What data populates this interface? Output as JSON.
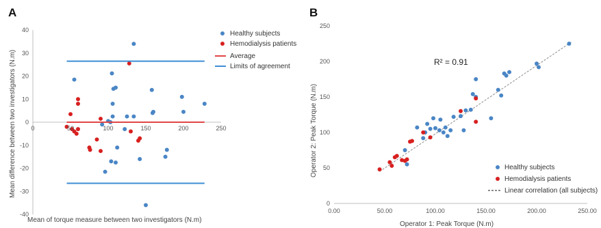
{
  "chart_data": [
    {
      "panel_label": "A",
      "type": "scatter",
      "subtype": "bland-altman",
      "xlabel": "Mean of torque measure between two investigators (N.m)",
      "ylabel": "Mean difference between two investigators (N.m)",
      "xlim": [
        0,
        250
      ],
      "ylim": [
        -40,
        40
      ],
      "xticks": [
        "0",
        "50",
        "100",
        "150",
        "200",
        "250"
      ],
      "yticks": [
        "40",
        "30",
        "20",
        "10",
        "0",
        "-10",
        "-20",
        "-30",
        "-40"
      ],
      "grid": false,
      "legend_position": "top-right",
      "series": [
        {
          "name": "Healthy subjects",
          "color": "#4a86c5",
          "points": [
            [
              55,
              18.5
            ],
            [
              92,
              -1
            ],
            [
              96,
              -21.5
            ],
            [
              100,
              0.5
            ],
            [
              103,
              0
            ],
            [
              104,
              -17
            ],
            [
              105,
              21.2
            ],
            [
              106,
              8
            ],
            [
              106,
              2.5
            ],
            [
              107,
              14.5
            ],
            [
              110,
              -17.5
            ],
            [
              110,
              15
            ],
            [
              112,
              -11
            ],
            [
              122,
              -3
            ],
            [
              125,
              2.5
            ],
            [
              134,
              34
            ],
            [
              134,
              2.5
            ],
            [
              142,
              -16
            ],
            [
              150,
              -36
            ],
            [
              158,
              14
            ],
            [
              159,
              4
            ],
            [
              160,
              4.5
            ],
            [
              176,
              -15
            ],
            [
              178,
              -12
            ],
            [
              198,
              11
            ],
            [
              200,
              4.5
            ],
            [
              228,
              8
            ]
          ]
        },
        {
          "name": "Hemodialysis patients",
          "color": "#d82020",
          "points": [
            [
              45,
              -2
            ],
            [
              50,
              3.5
            ],
            [
              52,
              -3
            ],
            [
              55,
              -4
            ],
            [
              58,
              -5
            ],
            [
              60,
              10
            ],
            [
              60,
              8
            ],
            [
              60,
              -3
            ],
            [
              75,
              -11
            ],
            [
              76,
              -12
            ],
            [
              85,
              -7.5
            ],
            [
              90,
              1.5
            ],
            [
              90,
              -12.5
            ],
            [
              128,
              25.5
            ],
            [
              130,
              -4
            ],
            [
              140,
              -8
            ],
            [
              142,
              -7
            ]
          ]
        }
      ],
      "reference_lines": [
        {
          "name": "Average",
          "y": 0,
          "color": "#e04545"
        },
        {
          "name": "Limits of agreement",
          "y": 26.5,
          "color": "#3d8ed6"
        },
        {
          "name": "Limits of agreement",
          "y": -26.5,
          "color": "#3d8ed6"
        }
      ]
    },
    {
      "panel_label": "B",
      "type": "scatter",
      "subtype": "correlation",
      "xlabel": "Operator 1: Peak Torque (N.m)",
      "ylabel": "Operator 2: Peak Torque (N.m)",
      "xlim": [
        0,
        250
      ],
      "ylim": [
        0,
        250
      ],
      "xticks": [
        "0.00",
        "50.00",
        "100.00",
        "150.00",
        "200.00",
        "250.00"
      ],
      "yticks": [
        "250",
        "200",
        "150",
        "100",
        "50",
        "0"
      ],
      "grid": false,
      "legend_position": "bottom-right",
      "annotation": "R² = 0.91",
      "series": [
        {
          "name": "Healthy subjects",
          "color": "#4a86c5",
          "points": [
            [
              70,
              75
            ],
            [
              72,
              55
            ],
            [
              82,
              107
            ],
            [
              88,
              92
            ],
            [
              90,
              100
            ],
            [
              92,
              112
            ],
            [
              95,
              105
            ],
            [
              98,
              120
            ],
            [
              100,
              106
            ],
            [
              104,
              103
            ],
            [
              105,
              118
            ],
            [
              108,
              100
            ],
            [
              110,
              107
            ],
            [
              112,
              95
            ],
            [
              115,
              103
            ],
            [
              118,
              122
            ],
            [
              125,
              123
            ],
            [
              128,
              103
            ],
            [
              130,
              131
            ],
            [
              135,
              132
            ],
            [
              137,
              154
            ],
            [
              140,
              150
            ],
            [
              140,
              175
            ],
            [
              155,
              120
            ],
            [
              162,
              160
            ],
            [
              165,
              152
            ],
            [
              168,
              183
            ],
            [
              170,
              180
            ],
            [
              173,
              185
            ],
            [
              200,
              197
            ],
            [
              202,
              192
            ],
            [
              232,
              225
            ]
          ]
        },
        {
          "name": "Hemodialysis patients",
          "color": "#d82020",
          "points": [
            [
              45,
              48
            ],
            [
              55,
              58
            ],
            [
              57,
              53
            ],
            [
              60,
              65
            ],
            [
              62,
              67
            ],
            [
              67,
              61
            ],
            [
              70,
              60
            ],
            [
              72,
              62
            ],
            [
              75,
              87
            ],
            [
              77,
              88
            ],
            [
              88,
              100
            ],
            [
              95,
              93
            ],
            [
              125,
              130
            ],
            [
              140,
              148
            ],
            [
              140,
              115
            ]
          ]
        }
      ],
      "trend_line": {
        "name": "Linear correlation (all subjects)",
        "x": [
          45,
          235
        ],
        "y": [
          45,
          228
        ],
        "color": "#8a8a8a"
      }
    }
  ]
}
